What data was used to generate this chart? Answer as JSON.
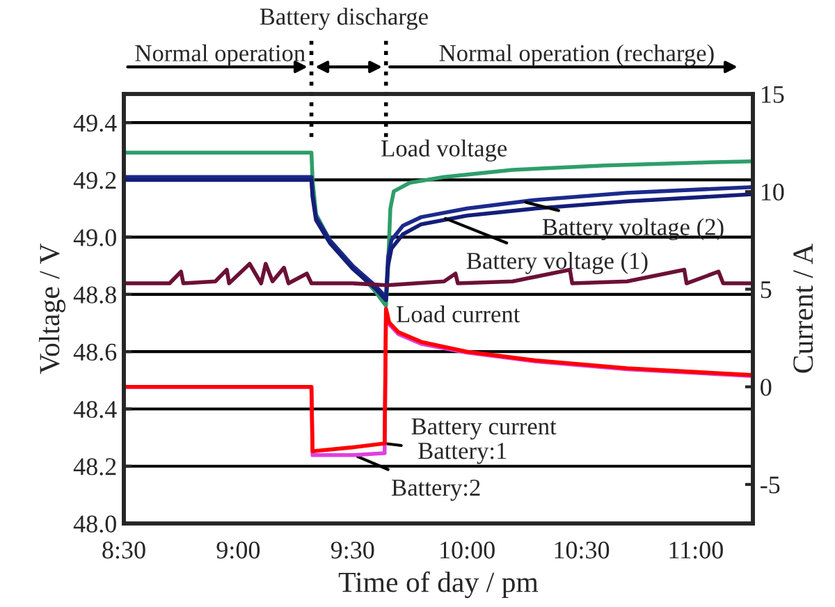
{
  "chart_data": {
    "type": "line",
    "xlabel": "Time of day / pm",
    "ylabel": "Voltage / V",
    "y2label": "Current / A",
    "xlim": [
      8.5,
      11.25
    ],
    "xticks": [
      {
        "value": 8.5,
        "label": "8:30"
      },
      {
        "value": 9.0,
        "label": "9:00"
      },
      {
        "value": 9.5,
        "label": "9:30"
      },
      {
        "value": 10.0,
        "label": "10:00"
      },
      {
        "value": 10.5,
        "label": "10:30"
      },
      {
        "value": 11.0,
        "label": "11:00"
      }
    ],
    "ylim": [
      48.0,
      49.5
    ],
    "yticks": [
      {
        "value": 48.0,
        "label": "48.0"
      },
      {
        "value": 48.2,
        "label": "48.2"
      },
      {
        "value": 48.4,
        "label": "48.4"
      },
      {
        "value": 48.6,
        "label": "48.6"
      },
      {
        "value": 48.8,
        "label": "48.8"
      },
      {
        "value": 49.0,
        "label": "49.0"
      },
      {
        "value": 49.2,
        "label": "49.2"
      },
      {
        "value": 49.4,
        "label": "49.4"
      }
    ],
    "y2lim": [
      -7,
      15
    ],
    "y2ticks": [
      -5,
      0,
      5,
      10,
      15
    ],
    "grid": "y",
    "legend": false,
    "marker": "none",
    "line_style": "solid",
    "series": [
      {
        "color": "#2e9e6a",
        "x": [
          8.5,
          9.32,
          9.325,
          9.34,
          9.4,
          9.5,
          9.6,
          9.646,
          9.655,
          9.665,
          9.68,
          9.75,
          9.9,
          10.2,
          10.6,
          11.0,
          11.25
        ],
        "values": [
          49.295,
          49.295,
          49.2,
          49.08,
          48.99,
          48.9,
          48.81,
          48.76,
          48.9,
          49.1,
          49.16,
          49.19,
          49.21,
          49.235,
          49.25,
          49.26,
          49.265
        ]
      },
      {
        "color": "#1c2a8c",
        "x": [
          8.5,
          9.32,
          9.325,
          9.34,
          9.4,
          9.5,
          9.6,
          9.646,
          9.655,
          9.67,
          9.72,
          9.8,
          10.0,
          10.3,
          10.7,
          11.25
        ],
        "values": [
          49.21,
          49.21,
          49.15,
          49.07,
          48.99,
          48.9,
          48.83,
          48.79,
          48.93,
          48.99,
          49.04,
          49.07,
          49.1,
          49.13,
          49.155,
          49.175
        ]
      },
      {
        "color": "#141e78",
        "x": [
          8.5,
          9.32,
          9.325,
          9.34,
          9.4,
          9.5,
          9.6,
          9.646,
          9.655,
          9.67,
          9.72,
          9.8,
          10.0,
          10.3,
          10.7,
          11.25
        ],
        "values": [
          49.2,
          49.2,
          49.14,
          49.06,
          48.98,
          48.89,
          48.82,
          48.78,
          48.9,
          48.96,
          49.01,
          49.045,
          49.075,
          49.1,
          49.125,
          49.15
        ]
      },
      {
        "color": "#6b1036",
        "axis": "y2",
        "x": [
          8.5,
          8.7,
          8.75,
          8.76,
          8.9,
          8.95,
          8.96,
          9.05,
          9.1,
          9.12,
          9.15,
          9.2,
          9.22,
          9.3,
          9.32,
          9.5,
          9.65,
          9.9,
          9.95,
          9.96,
          10.2,
          10.45,
          10.46,
          10.7,
          10.95,
          10.96,
          11.1,
          11.12,
          11.25
        ],
        "values": [
          5.3,
          5.3,
          5.9,
          5.3,
          5.4,
          6.0,
          5.3,
          6.3,
          5.3,
          6.3,
          5.4,
          6.1,
          5.3,
          5.8,
          5.3,
          5.3,
          5.2,
          5.4,
          5.8,
          5.3,
          5.4,
          6.0,
          5.3,
          5.4,
          6.0,
          5.3,
          5.9,
          5.3,
          5.3
        ]
      },
      {
        "color": "#e040e0",
        "axis": "y2",
        "x": [
          8.5,
          9.32,
          9.325,
          9.5,
          9.64,
          9.646,
          9.66,
          9.7,
          9.8,
          10.0,
          10.3,
          10.7,
          11.25
        ],
        "values": [
          0,
          0,
          -3.5,
          -3.5,
          -3.4,
          3.9,
          3.2,
          2.7,
          2.2,
          1.75,
          1.3,
          0.9,
          0.55
        ]
      },
      {
        "color": "#ff0000",
        "axis": "y2",
        "x": [
          8.5,
          9.32,
          9.325,
          9.5,
          9.64,
          9.646,
          9.66,
          9.7,
          9.8,
          10.0,
          10.3,
          10.7,
          11.25
        ],
        "values": [
          0,
          0,
          -3.3,
          -3.1,
          -2.9,
          4.0,
          3.3,
          2.8,
          2.3,
          1.8,
          1.35,
          0.95,
          0.6
        ]
      }
    ],
    "ref_lines": [
      {
        "axis": "x",
        "value": 9.32,
        "line_style": "dotted",
        "color": "#000000"
      },
      {
        "axis": "x",
        "value": 9.646,
        "line_style": "dotted",
        "color": "#000000"
      }
    ],
    "annotations": [
      "Normal operation",
      "Battery discharge",
      "Normal operation (recharge)",
      {
        "text": "Load voltage",
        "x": 9.9,
        "y": 49.21
      },
      {
        "text": "Battery voltage (2)",
        "x": 10.24,
        "y": 49.125
      },
      {
        "text": "Battery voltage (1)",
        "x": 9.89,
        "y": 49.07
      },
      {
        "text": "Load current",
        "x": 9.9,
        "y": 48.84
      },
      {
        "text": "Battery current",
        "x": 9.55,
        "y": 48.273
      },
      {
        "text": "Battery:1",
        "x": 9.634,
        "y": 48.28
      },
      {
        "text": "Battery:2",
        "x": 9.506,
        "y": 48.239
      }
    ]
  }
}
